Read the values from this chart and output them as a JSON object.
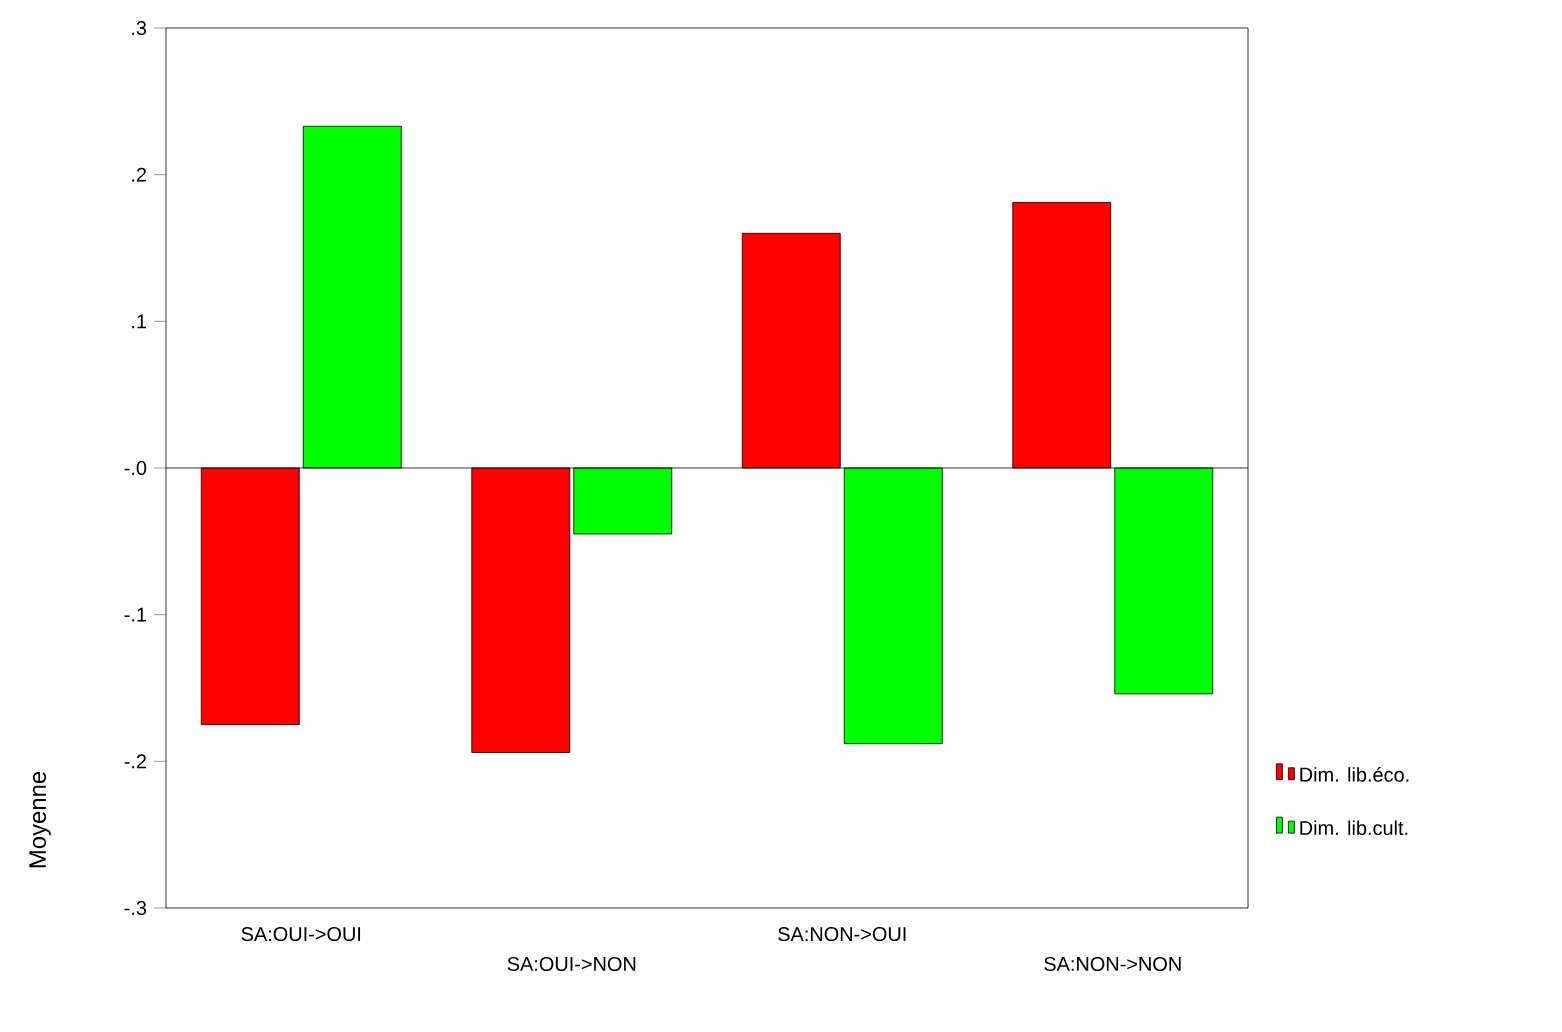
{
  "chart_data": {
    "type": "bar",
    "ylabel": "Moyenne",
    "categories": [
      "SA:OUI->OUI",
      "SA:OUI->NON",
      "SA:NON->OUI",
      "SA:NON->NON"
    ],
    "series": [
      {
        "name": "Dim. lib.éco.",
        "color": "#ff0000",
        "values": [
          -0.175,
          -0.194,
          0.16,
          0.181
        ]
      },
      {
        "name": "Dim. lib.cult.",
        "color": "#00ff00",
        "values": [
          0.233,
          -0.045,
          -0.188,
          -0.154
        ]
      }
    ],
    "ylim": [
      -0.3,
      0.3
    ],
    "yticks": [
      {
        "value": -0.3,
        "label": "-.3"
      },
      {
        "value": -0.2,
        "label": "-.2"
      },
      {
        "value": -0.1,
        "label": "-.1"
      },
      {
        "value": 0,
        "label": "-.0"
      },
      {
        "value": 0.1,
        "label": ".1"
      },
      {
        "value": 0.2,
        "label": ".2"
      },
      {
        "value": 0.3,
        "label": ".3"
      }
    ],
    "ref_lines": [
      {
        "axis": "y",
        "value": 0
      }
    ],
    "legend": "right",
    "grid": false
  }
}
